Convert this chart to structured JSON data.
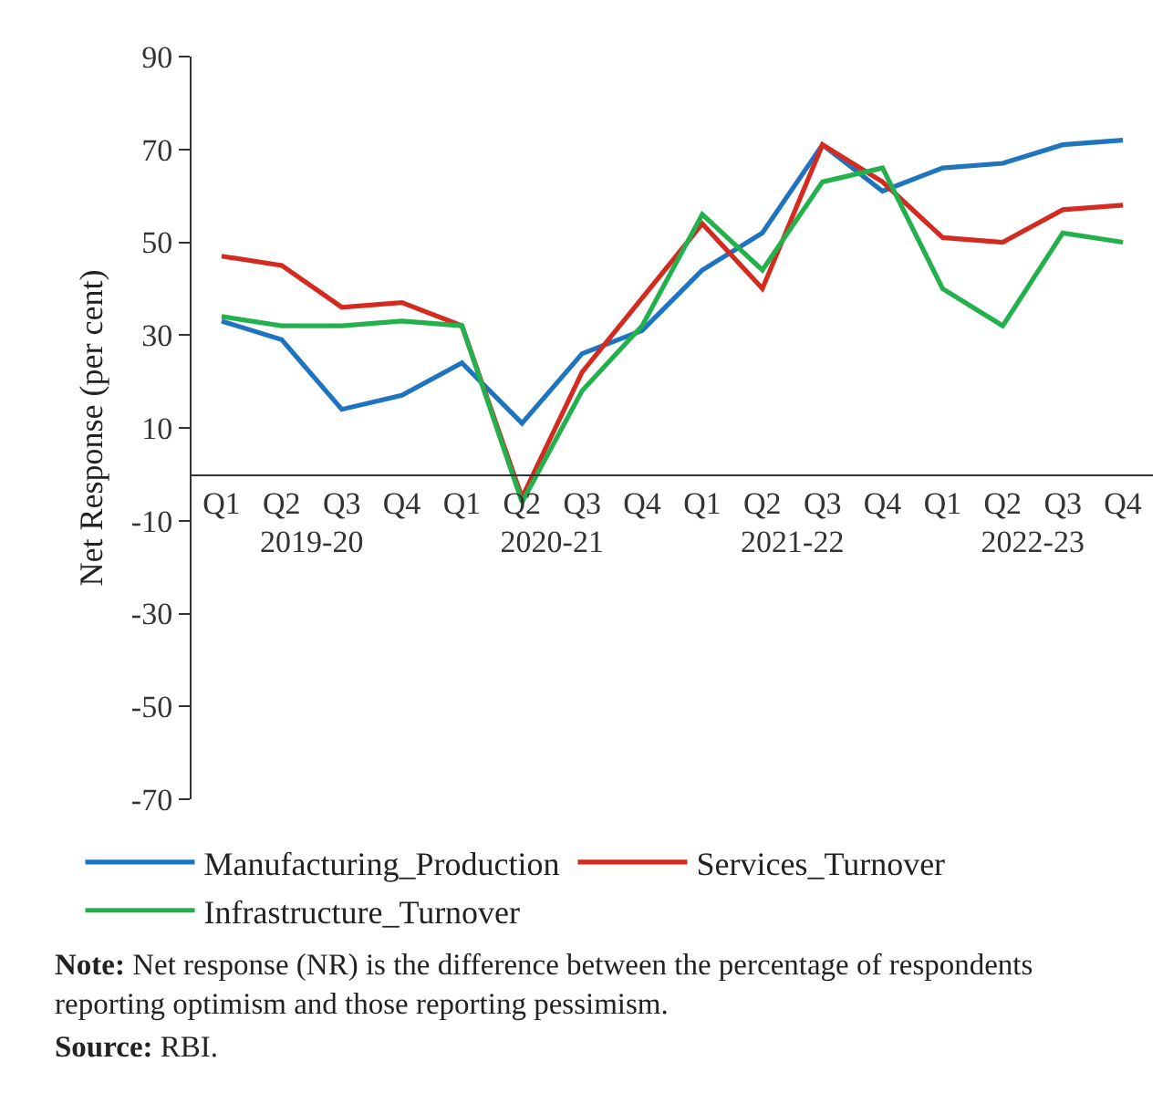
{
  "chart_data": {
    "type": "line",
    "ylabel": "Net Response (per cent)",
    "categories": [
      "Q1",
      "Q2",
      "Q3",
      "Q4",
      "Q1",
      "Q2",
      "Q3",
      "Q4",
      "Q1",
      "Q2",
      "Q3",
      "Q4",
      "Q1",
      "Q2",
      "Q3",
      "Q4"
    ],
    "series": [
      {
        "name": "Manufacturing_Production",
        "color": "#1f74bf",
        "values": [
          33,
          29,
          14,
          17,
          24,
          11,
          26,
          31,
          44,
          52,
          71,
          61,
          66,
          67,
          71,
          72
        ]
      },
      {
        "name": "Services_Turnover",
        "color": "#d42a20",
        "values": [
          47,
          45,
          36,
          37,
          32,
          -5,
          22,
          38,
          54,
          40,
          71,
          63,
          51,
          50,
          57,
          58
        ]
      },
      {
        "name": "Infrastructure_Turnover",
        "color": "#23b14d",
        "values": [
          34,
          32,
          32,
          33,
          32,
          -6,
          18,
          32,
          56,
          44,
          63,
          66,
          40,
          32,
          52,
          50
        ]
      }
    ],
    "ylim": [
      -70,
      90
    ],
    "yticks": [
      -70,
      -50,
      -30,
      -10,
      10,
      30,
      50,
      70,
      90
    ],
    "grid": false,
    "legend": "bottom",
    "marker": "none",
    "line_style": "solid",
    "annotations": [
      "2019-20",
      "2020-21",
      "2021-22",
      "2022-23",
      "Note: Net response (NR) is the difference between the percentage of respondents reporting optimism and those reporting pessimism.",
      "Source: RBI."
    ]
  }
}
